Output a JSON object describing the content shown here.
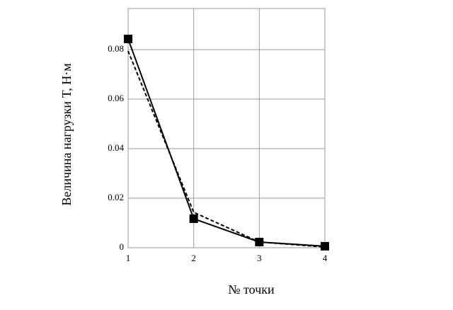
{
  "chart_data": {
    "type": "line",
    "ylabel": "Величина нагрузки T, Н·м",
    "xlabel": "№ точки",
    "x": [
      1,
      2,
      3,
      4
    ],
    "series": [
      {
        "color": "#000000",
        "dashed": false,
        "marker": "square",
        "values": [
          0.0843,
          0.0117,
          0.0023,
          0.0006
        ]
      },
      {
        "color": "#000000",
        "dashed": true,
        "marker": "none",
        "values": [
          0.0794,
          0.0143,
          0.0023,
          0.0003
        ]
      }
    ],
    "xlim": [
      1,
      4
    ],
    "xticks": [
      1,
      2,
      3,
      4
    ],
    "ylim": [
      0,
      0.0966
    ],
    "yticks": [
      0,
      0.02,
      0.04,
      0.06,
      0.08
    ],
    "grid": true
  }
}
